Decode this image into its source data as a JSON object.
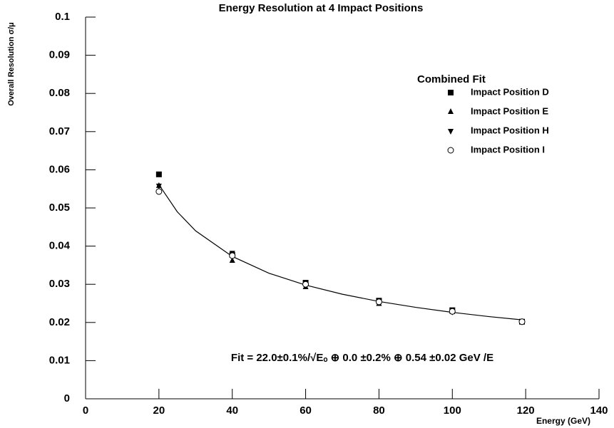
{
  "chart_data": {
    "type": "scatter",
    "title": "Energy Resolution at 4 Impact Positions",
    "x_label": "Energy (GeV)",
    "y_label": "Overall Resolution σ/μ",
    "legend_title": "Combined Fit",
    "annotation": "Fit = 22.0±0.1%/√Eₒ ⊕ 0.0 ±0.2% ⊕ 0.54 ±0.02 GeV /E",
    "legend": "upper-right",
    "x": [
      20,
      40,
      60,
      80,
      100,
      119
    ],
    "series": [
      {
        "name": "Impact Position D",
        "color": "#000000",
        "marker": "square",
        "values": [
          0.0588,
          0.0377,
          0.0304,
          0.0257,
          0.0232,
          0.0202
        ]
      },
      {
        "name": "Impact Position E",
        "color": "#000000",
        "marker": "triangle-up",
        "values": [
          0.0558,
          0.0362,
          0.0293,
          0.0249,
          0.0228,
          0.0202
        ]
      },
      {
        "name": "Impact Position H",
        "color": "#000000",
        "marker": "triangle-down",
        "values": [
          0.0558,
          0.0382,
          0.0297,
          0.0255,
          0.0228,
          0.0202
        ]
      },
      {
        "name": "Impact Position I",
        "color": "#000000",
        "marker": "circle",
        "values": [
          0.0543,
          0.0375,
          0.03,
          0.0254,
          0.0229,
          0.0202
        ]
      }
    ],
    "fit": {
      "color": "#000000",
      "x": [
        20,
        25,
        30,
        40,
        50,
        60,
        70,
        80,
        90,
        100,
        110,
        119
      ],
      "values": [
        0.0561,
        0.049,
        0.044,
        0.0373,
        0.0329,
        0.0298,
        0.0274,
        0.0255,
        0.02396,
        0.02265,
        0.02154,
        0.02068
      ]
    },
    "xlim": [
      0,
      140
    ],
    "xticks": [
      0,
      20,
      40,
      60,
      80,
      100,
      120,
      140
    ],
    "ylim": [
      0,
      0.1
    ],
    "yticks": [
      0,
      0.01,
      0.02,
      0.03,
      0.04,
      0.05,
      0.06,
      0.07,
      0.08,
      0.09,
      0.1
    ],
    "grid": false
  }
}
